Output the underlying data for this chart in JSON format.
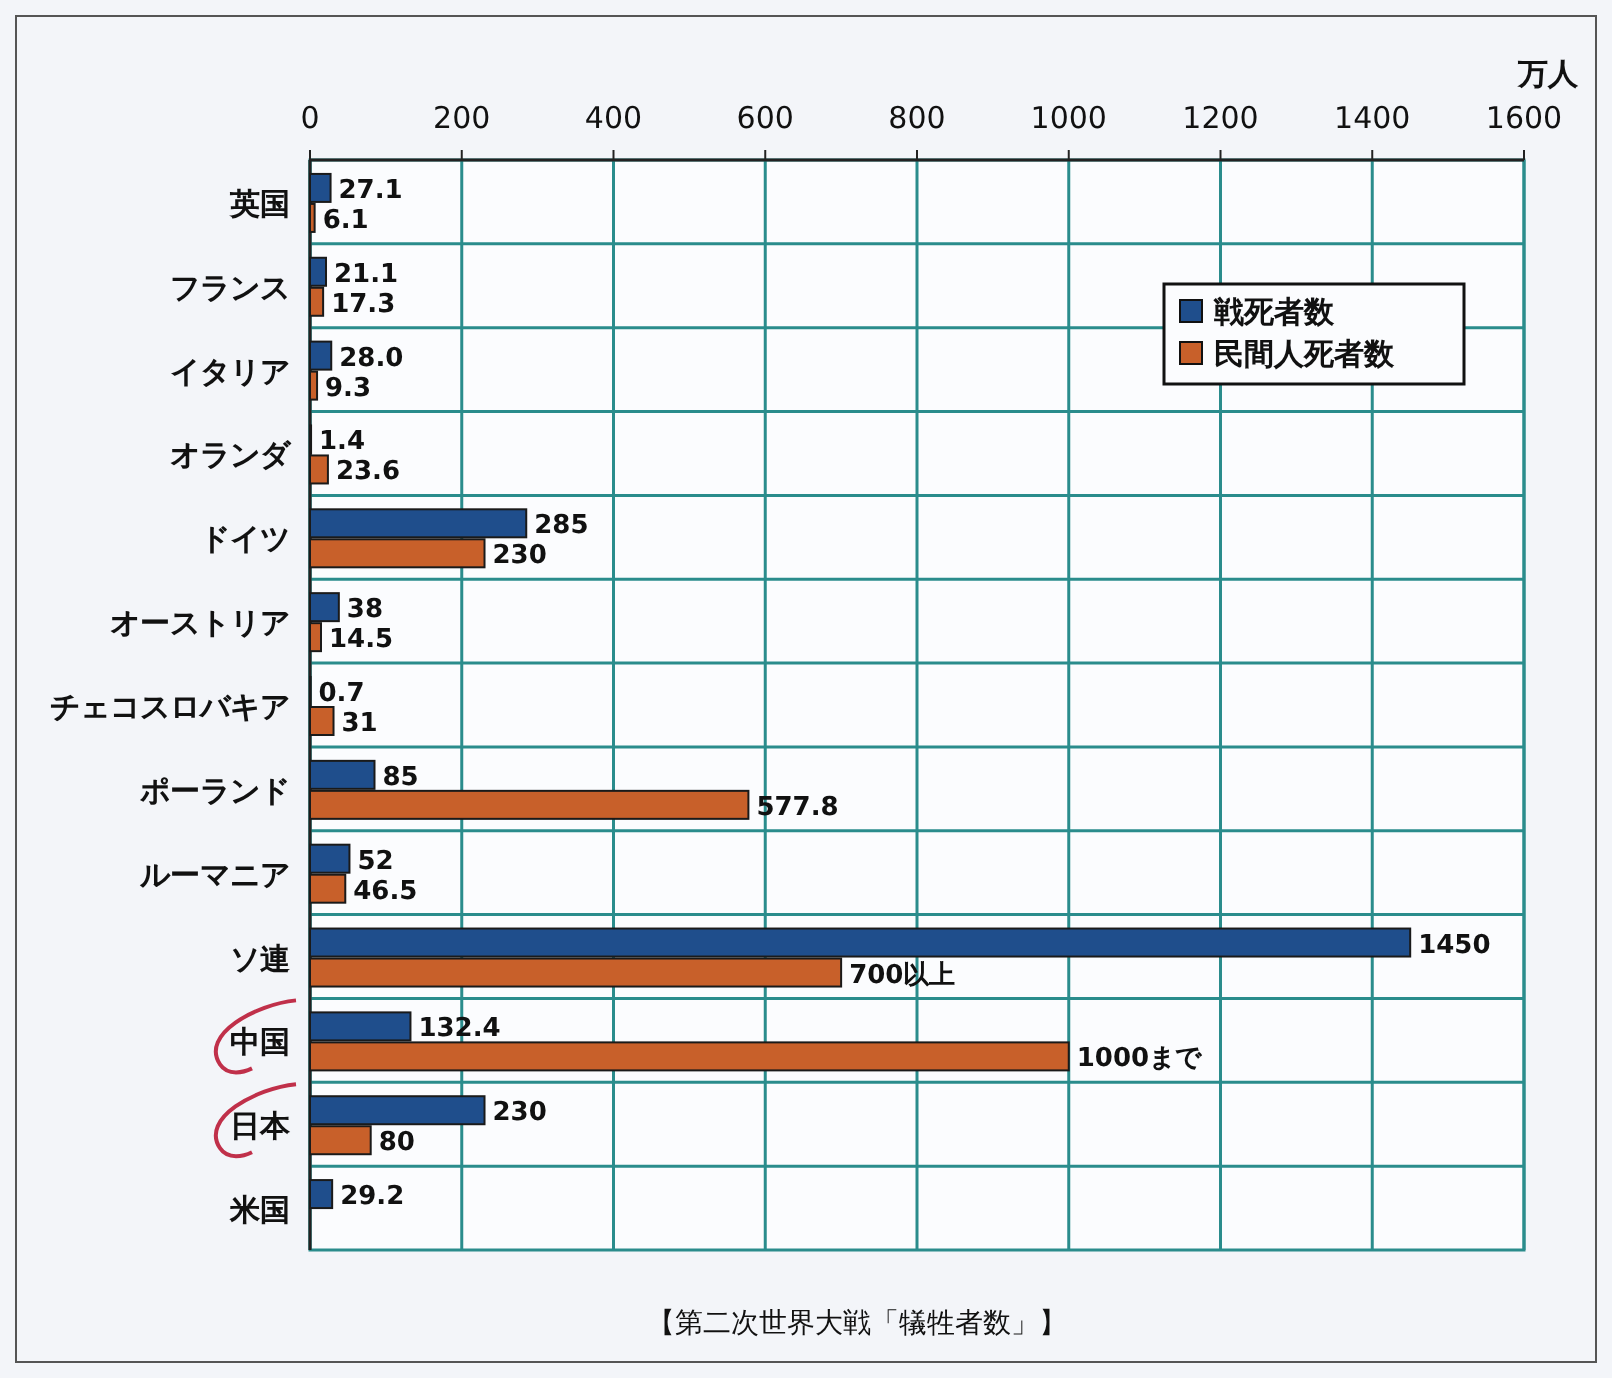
{
  "chart_data": {
    "type": "bar",
    "orientation": "horizontal",
    "xlabel": "万人",
    "categories": [
      "英国",
      "フランス",
      "イタリア",
      "オランダ",
      "ドイツ",
      "オーストリア",
      "チェコスロバキア",
      "ポーランド",
      "ルーマニア",
      "ソ連",
      "中国",
      "日本",
      "米国"
    ],
    "series": [
      {
        "name": "戦死者数",
        "color": "#1f4e8c",
        "values": [
          27.1,
          21.1,
          28.0,
          1.4,
          285,
          38,
          0.7,
          85,
          52,
          1450,
          132.4,
          230,
          29.2
        ],
        "value_labels": [
          "27.1",
          "21.1",
          "28.0",
          "1.4",
          "285",
          "38",
          "0.7",
          "85",
          "52",
          "1450",
          "132.4",
          "230",
          "29.2"
        ]
      },
      {
        "name": "民間人死者数",
        "color": "#c8602a",
        "values": [
          6.1,
          17.3,
          9.3,
          23.6,
          230,
          14.5,
          31,
          577.8,
          46.5,
          700,
          1000,
          80,
          null
        ],
        "value_labels": [
          "6.1",
          "17.3",
          "9.3",
          "23.6",
          "230",
          "14.5",
          "31",
          "577.8",
          "46.5",
          "700以上",
          "1000まで",
          "80",
          null
        ]
      }
    ],
    "xlim": [
      0,
      1600
    ],
    "xticks": [
      0,
      200,
      400,
      600,
      800,
      1000,
      1200,
      1400,
      1600
    ],
    "grid": true,
    "legend": "top right",
    "annotations": [
      "【第二次世界大戦「犠牲者数」】"
    ]
  }
}
